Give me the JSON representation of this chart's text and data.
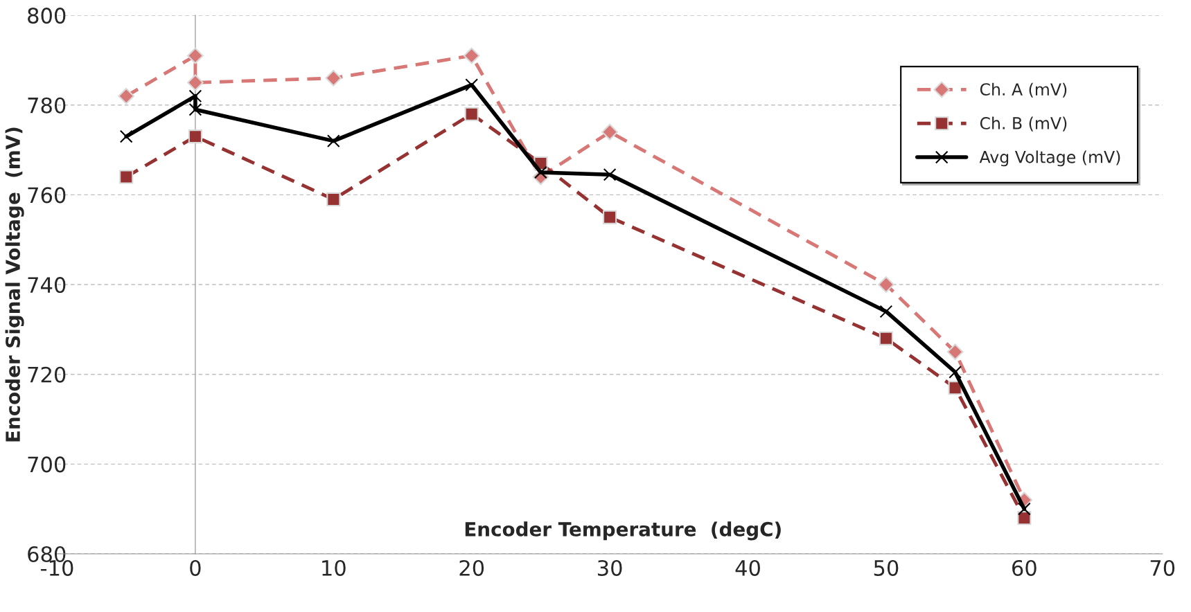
{
  "chart_data": {
    "type": "line",
    "xlabel": "Encoder Temperature  (degC)",
    "ylabel": "Encoder Signal Voltage  (mV)",
    "xlim": [
      -10,
      70
    ],
    "xticks": [
      -10,
      0,
      10,
      20,
      30,
      40,
      50,
      60,
      70
    ],
    "ylim": [
      680,
      800
    ],
    "yticks": [
      680,
      700,
      720,
      740,
      760,
      780,
      800
    ],
    "grid": "y",
    "legend": "top right",
    "series": [
      {
        "name": "Ch. A (mV)",
        "color": "#d77776",
        "marker": "diamond",
        "line_style": "dashed",
        "x": [
          -5,
          0,
          0,
          10,
          20,
          25,
          30,
          50,
          55,
          60
        ],
        "values": [
          782,
          791,
          785,
          786,
          791,
          764,
          774,
          740,
          725,
          692
        ]
      },
      {
        "name": "Ch. B (mV)",
        "color": "#963232",
        "marker": "square",
        "line_style": "dashed",
        "x": [
          -5,
          0,
          10,
          20,
          25,
          30,
          50,
          55,
          60
        ],
        "values": [
          764,
          773,
          759,
          778,
          767,
          755,
          728,
          717,
          688
        ]
      },
      {
        "name": "Avg Voltage (mV)",
        "color": "#000000",
        "marker": "cross",
        "line_style": "solid",
        "x": [
          -5,
          0,
          0,
          10,
          20,
          25,
          30,
          50,
          55,
          60
        ],
        "values": [
          773,
          782,
          779,
          772,
          784.5,
          765,
          764.5,
          734,
          720.5,
          690
        ]
      }
    ]
  }
}
